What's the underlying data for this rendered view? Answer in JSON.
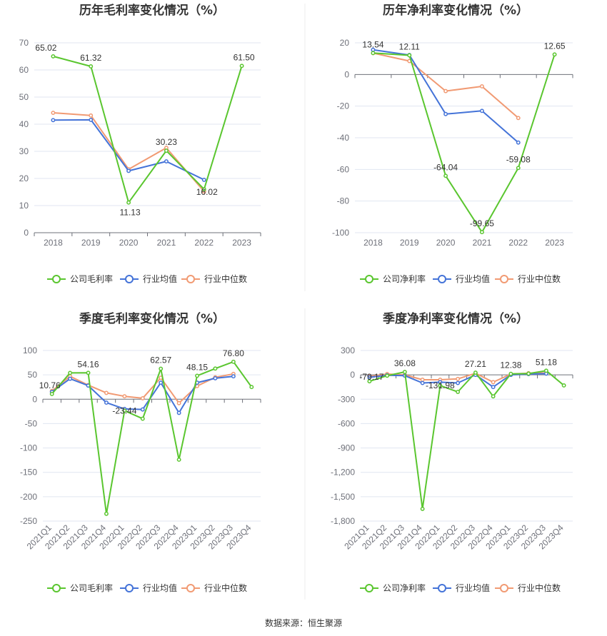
{
  "colors": {
    "company": "#5ac62f",
    "mean": "#4473d8",
    "median": "#f19a73"
  },
  "footer": {
    "source": "数据来源：恒生聚源"
  },
  "chart_data": [
    {
      "type": "line",
      "title": "历年毛利率变化情况（%）",
      "categories": [
        "2018",
        "2019",
        "2020",
        "2021",
        "2022",
        "2023"
      ],
      "ylim": [
        0,
        70
      ],
      "yticks": [
        0,
        10,
        20,
        30,
        40,
        50,
        60,
        70
      ],
      "grid": true,
      "legend_position": "bottom",
      "series": [
        {
          "name": "公司毛利率",
          "key": "company",
          "values": [
            65.02,
            61.32,
            11.13,
            30.23,
            16.02,
            61.5
          ],
          "labels": [
            "65.02",
            "61.32",
            "11.13",
            "30.23",
            "16.02",
            "61.50"
          ]
        },
        {
          "name": "行业均值",
          "key": "mean",
          "values": [
            41.5,
            41.6,
            22.8,
            26.3,
            19.5,
            null
          ]
        },
        {
          "name": "行业中位数",
          "key": "median",
          "values": [
            44.2,
            43.2,
            23.4,
            31.3,
            15.2,
            null
          ]
        }
      ]
    },
    {
      "type": "line",
      "title": "历年净利率变化情况（%）",
      "categories": [
        "2018",
        "2019",
        "2020",
        "2021",
        "2022",
        "2023"
      ],
      "ylim": [
        -100,
        20
      ],
      "yticks": [
        -100,
        -80,
        -60,
        -40,
        -20,
        0,
        20
      ],
      "grid": true,
      "legend_position": "bottom",
      "series": [
        {
          "name": "公司净利率",
          "key": "company",
          "values": [
            13.54,
            12.11,
            -64.04,
            -99.65,
            -59.08,
            12.65
          ],
          "labels": [
            "13.54",
            "12.11",
            "-64.04",
            "-99.65",
            "-59.08",
            "12.65"
          ]
        },
        {
          "name": "行业均值",
          "key": "mean",
          "values": [
            15.6,
            12.3,
            -25.0,
            -23.0,
            -43.0,
            null
          ]
        },
        {
          "name": "行业中位数",
          "key": "median",
          "values": [
            13.5,
            8.5,
            -10.5,
            -7.5,
            -27.5,
            null
          ]
        }
      ]
    },
    {
      "type": "line",
      "title": "季度毛利率变化情况（%）",
      "categories": [
        "2021Q1",
        "2021Q2",
        "2021Q3",
        "2021Q4",
        "2022Q1",
        "2022Q2",
        "2022Q3",
        "2022Q4",
        "2023Q1",
        "2023Q2",
        "2023Q3",
        "2023Q4"
      ],
      "ylim": [
        -250,
        100
      ],
      "yticks": [
        -250,
        -200,
        -150,
        -100,
        -50,
        0,
        50,
        100
      ],
      "grid": true,
      "legend_position": "bottom",
      "series": [
        {
          "name": "公司毛利率",
          "key": "company",
          "values": [
            10.76,
            54.0,
            54.16,
            -235.0,
            -23.44,
            -40.0,
            62.57,
            -124.0,
            48.15,
            63.0,
            76.8,
            25.0
          ],
          "labels": [
            "10.76",
            null,
            "54.16",
            null,
            "-23.44",
            null,
            "62.57",
            null,
            "48.15",
            null,
            "76.80",
            null
          ]
        },
        {
          "name": "行业均值",
          "key": "mean",
          "values": [
            15.0,
            42.0,
            28.0,
            -7.0,
            -20.0,
            -21.0,
            34.0,
            -28.0,
            34.0,
            43.0,
            47.0,
            null
          ]
        },
        {
          "name": "行业中位数",
          "key": "median",
          "values": [
            17.0,
            47.0,
            29.0,
            13.0,
            6.0,
            2.0,
            44.0,
            -8.0,
            27.0,
            45.0,
            52.0,
            null
          ]
        }
      ]
    },
    {
      "type": "line",
      "title": "季度净利率变化情况（%）",
      "categories": [
        "2021Q1",
        "2021Q2",
        "2021Q3",
        "2021Q4",
        "2022Q1",
        "2022Q2",
        "2022Q3",
        "2022Q4",
        "2023Q1",
        "2023Q2",
        "2023Q3",
        "2023Q4"
      ],
      "ylim": [
        -1800,
        300
      ],
      "yticks": [
        -1800,
        -1500,
        -1200,
        -900,
        -600,
        -300,
        0,
        300
      ],
      "ytick_labels": [
        "-1,800",
        "-1,500",
        "-1,200",
        "-900",
        "-600",
        "-300",
        "0",
        "300"
      ],
      "grid": true,
      "legend_position": "bottom",
      "series": [
        {
          "name": "公司净利率",
          "key": "company",
          "values": [
            -79.17,
            -10.0,
            36.08,
            -1650.0,
            -131.98,
            -210.0,
            27.21,
            -265.0,
            12.38,
            15.0,
            51.18,
            -130.0
          ],
          "labels": [
            "-79.17",
            null,
            "36.08",
            null,
            "-131.98",
            null,
            "27.21",
            null,
            "12.38",
            null,
            "51.18",
            null
          ]
        },
        {
          "name": "行业均值",
          "key": "mean",
          "values": [
            -30.0,
            -5.0,
            -10.0,
            -100.0,
            -90.0,
            -100.0,
            0.0,
            -150.0,
            0.0,
            10.0,
            15.0,
            null
          ]
        },
        {
          "name": "行业中位数",
          "key": "median",
          "values": [
            -20.0,
            10.0,
            0.0,
            -60.0,
            -60.0,
            -50.0,
            20.0,
            -90.0,
            10.0,
            20.0,
            25.0,
            null
          ]
        }
      ]
    }
  ]
}
